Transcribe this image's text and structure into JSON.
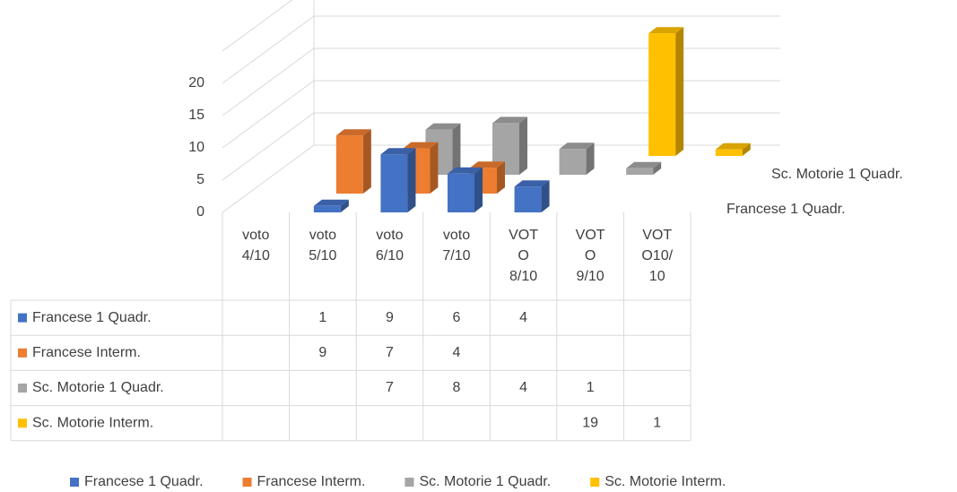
{
  "chart_data": {
    "type": "bar3d",
    "categories": [
      "voto 4/10",
      "voto 5/10",
      "voto 6/10",
      "voto 7/10",
      "VOTO 8/10",
      "VOTO 9/10",
      "VOTO10/10"
    ],
    "series": [
      {
        "name": "Francese 1 Quadr.",
        "color": "#4472c4",
        "values": [
          null,
          1,
          9,
          6,
          4,
          null,
          null
        ]
      },
      {
        "name": "Francese Interm.",
        "color": "#ed7d31",
        "values": [
          null,
          9,
          7,
          4,
          null,
          null,
          null
        ]
      },
      {
        "name": "Sc. Motorie 1 Quadr.",
        "color": "#a5a5a5",
        "values": [
          null,
          null,
          7,
          8,
          4,
          1,
          null
        ]
      },
      {
        "name": "Sc. Motorie Interm.",
        "color": "#ffc000",
        "values": [
          null,
          null,
          null,
          null,
          null,
          19,
          1
        ]
      }
    ],
    "ylim": [
      0,
      20
    ],
    "yticks": [
      0,
      5,
      10,
      15,
      20
    ],
    "grid": true,
    "legend": "bottom",
    "data_table": true
  }
}
